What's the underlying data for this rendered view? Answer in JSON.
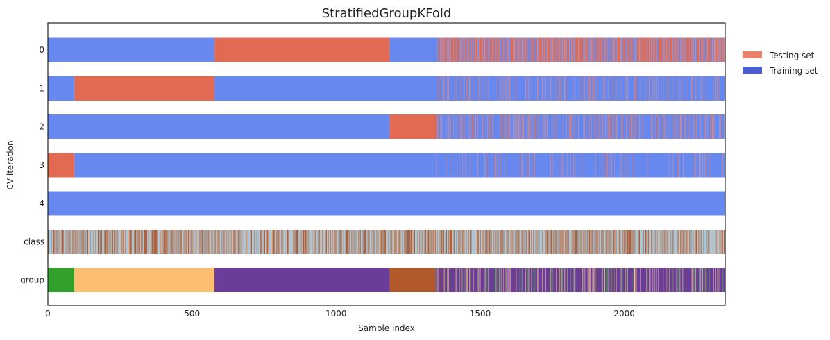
{
  "chart_data": {
    "type": "bar",
    "title": "StratifiedGroupKFold",
    "xlabel": "Sample index",
    "ylabel": "CV iteration",
    "xlim": [
      0,
      2350
    ],
    "xticks": [
      0,
      500,
      1000,
      1500,
      2000
    ],
    "rows": [
      "0",
      "1",
      "2",
      "3",
      "4",
      "class",
      "group"
    ],
    "legend": {
      "position": "top-right outside",
      "entries": [
        {
          "label": "Testing set",
          "color": "#e8806a"
        },
        {
          "label": "Training set",
          "color": "#4a5fcf"
        }
      ]
    },
    "colors": {
      "train": "#6788ee",
      "test": "#e26952",
      "class_a": "#b0603a",
      "class_b": "#a7c8d8",
      "group_green": "#33a02c",
      "group_orange": "#fdbf6f",
      "group_purple": "#6a3d9a",
      "group_brown": "#b15928"
    },
    "blocks": {
      "group_boundaries": [
        0,
        92,
        578,
        1186,
        1345,
        2350
      ],
      "mixed_region_start": 1345
    }
  }
}
